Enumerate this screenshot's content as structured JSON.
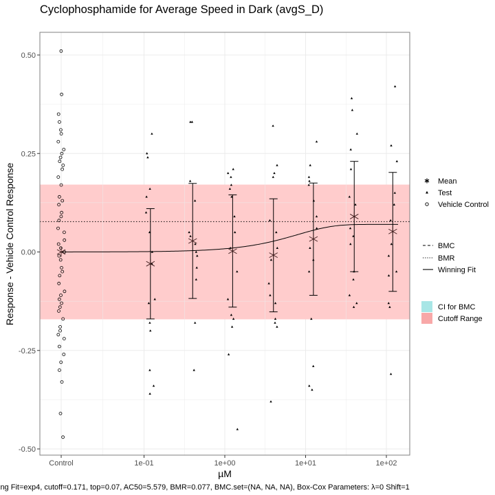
{
  "chart_data": {
    "type": "scatter",
    "title": "Cyclophosphamide for Average Speed in Dark (avgS_D)",
    "xlabel": "µM",
    "ylabel": "Response - Vehicle Control Response",
    "x_scale": "log10",
    "x_tick_labels": [
      "Control",
      "1e-01",
      "1e+00",
      "1e+01",
      "1e+02"
    ],
    "x_tick_values": [
      null,
      0.1,
      1,
      10,
      100
    ],
    "ylim": [
      -0.51,
      0.52
    ],
    "y_ticks": [
      -0.5,
      -0.25,
      0.0,
      0.25,
      0.5
    ],
    "y_tick_labels": [
      "-0.50",
      "-0.25",
      "0.00",
      "0.25",
      "0.50"
    ],
    "grid": true,
    "cutoff_range": [
      -0.171,
      0.171
    ],
    "bmr_line": 0.077,
    "concentrations": [
      0.12,
      0.4,
      1.25,
      4,
      12.5,
      40,
      120
    ],
    "means": [
      -0.03,
      0.028,
      0.002,
      -0.008,
      0.033,
      0.09,
      0.052
    ],
    "error_bars": [
      {
        "low": -0.17,
        "high": 0.11
      },
      {
        "low": -0.118,
        "high": 0.174
      },
      {
        "low": -0.14,
        "high": 0.145
      },
      {
        "low": -0.152,
        "high": 0.135
      },
      {
        "low": -0.11,
        "high": 0.175
      },
      {
        "low": -0.05,
        "high": 0.23
      },
      {
        "low": -0.1,
        "high": 0.202
      }
    ],
    "fit": {
      "model": "exp4",
      "bottom": 0,
      "top": 0.07,
      "ac50": 5.579
    },
    "control_points": [
      0.51,
      0.4,
      0.35,
      0.33,
      0.31,
      0.3,
      0.28,
      0.26,
      0.25,
      0.24,
      0.23,
      0.22,
      0.21,
      0.19,
      0.17,
      0.14,
      0.13,
      0.12,
      0.1,
      0.09,
      0.08,
      0.06,
      0.05,
      0.03,
      0.02,
      0.01,
      0.0,
      -0.01,
      -0.02,
      -0.04,
      -0.05,
      -0.06,
      -0.08,
      -0.1,
      -0.11,
      -0.12,
      -0.13,
      -0.14,
      -0.15,
      -0.17,
      -0.19,
      -0.2,
      -0.21,
      -0.22,
      -0.24,
      -0.26,
      -0.28,
      -0.3,
      -0.33,
      -0.41,
      -0.47
    ],
    "test_points": [
      {
        "x": 0.12,
        "y": [
          0.3,
          0.25,
          0.24,
          0.16,
          0.14,
          0.1,
          0.05,
          0.0,
          -0.03,
          -0.12,
          -0.13,
          -0.18,
          -0.2,
          -0.3,
          -0.34,
          -0.36
        ]
      },
      {
        "x": 0.4,
        "y": [
          0.33,
          0.33,
          0.18,
          0.13,
          0.05,
          0.04,
          0.02,
          0.0,
          -0.01,
          -0.04,
          -0.07,
          -0.18,
          -0.3
        ]
      },
      {
        "x": 1.25,
        "y": [
          0.21,
          0.2,
          0.19,
          0.17,
          0.16,
          0.14,
          0.09,
          0.05,
          0.01,
          -0.05,
          -0.12,
          -0.16,
          -0.17,
          -0.19,
          -0.26,
          -0.45
        ]
      },
      {
        "x": 4,
        "y": [
          0.32,
          0.22,
          0.2,
          0.19,
          0.08,
          0.05,
          0.01,
          -0.02,
          -0.08,
          -0.11,
          -0.13,
          -0.17,
          -0.18,
          -0.19,
          -0.38
        ]
      },
      {
        "x": 12.5,
        "y": [
          0.28,
          0.22,
          0.19,
          0.18,
          0.17,
          0.13,
          0.09,
          0.06,
          0.01,
          -0.02,
          -0.05,
          -0.17,
          -0.29,
          -0.34,
          -0.35
        ]
      },
      {
        "x": 40,
        "y": [
          0.39,
          0.36,
          0.3,
          0.26,
          0.21,
          0.14,
          0.12,
          0.06,
          0.04,
          0.02,
          -0.05,
          -0.07,
          -0.11,
          -0.13,
          -0.14
        ]
      },
      {
        "x": 120,
        "y": [
          0.42,
          0.27,
          0.23,
          0.15,
          0.12,
          0.08,
          0.02,
          -0.01,
          -0.05,
          -0.06,
          -0.13,
          -0.14,
          -0.31
        ]
      }
    ],
    "legend": {
      "shapes": [
        {
          "symbol": "✱",
          "label": "Mean"
        },
        {
          "symbol": "▴",
          "label": "Test"
        },
        {
          "symbol": "○",
          "label": "Vehicle Control"
        }
      ],
      "lines": [
        {
          "style": "dashed",
          "label": "BMC"
        },
        {
          "style": "dotted",
          "label": "BMR"
        },
        {
          "style": "solid",
          "label": "Winning Fit"
        }
      ],
      "fills": [
        {
          "color": "#a8e6e6",
          "label": "CI for BMC"
        },
        {
          "color": "#f8a8a8",
          "label": "Cutoff Range"
        }
      ],
      "placement": "right"
    },
    "caption": "ing Fit=exp4, cutoff=0.171, top=0.07, AC50=5.579, BMR=0.077, BMC.set=(NA, NA, NA), Box-Cox Parameters: λ=0 Shift=1",
    "colors": {
      "cutoff_band": "#ffb3b3",
      "points": "#000000",
      "fit": "#000000",
      "grid": "#ebebeb",
      "panel_border": "#7f7f7f"
    }
  }
}
